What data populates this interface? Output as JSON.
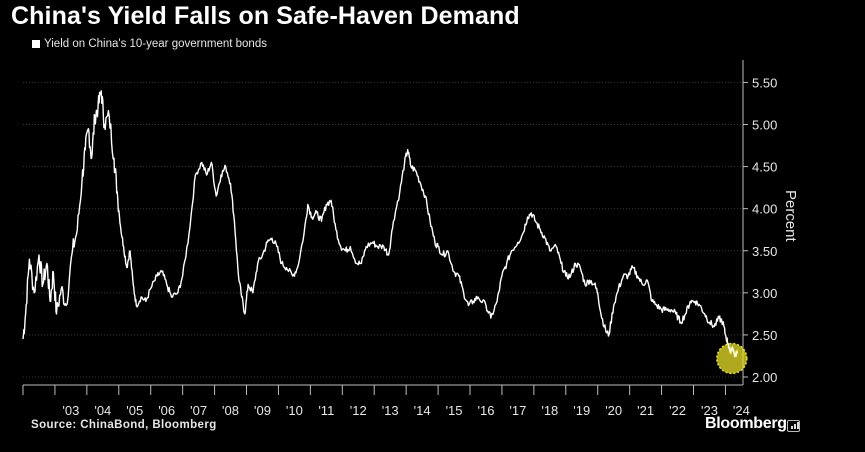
{
  "chart_data": {
    "type": "line",
    "title": "China's Yield Falls on Safe-Haven Demand",
    "legend": "Yield on China's 10-year government bonds",
    "ylabel": "Percent",
    "ylim": [
      2.0,
      5.6
    ],
    "yticks": [
      "2.00",
      "2.50",
      "3.00",
      "3.50",
      "4.00",
      "4.50",
      "5.00",
      "5.50"
    ],
    "ytick_values": [
      2.0,
      2.5,
      3.0,
      3.5,
      4.0,
      4.5,
      5.0,
      5.5
    ],
    "xticks": [
      "'03",
      "'04",
      "'05",
      "'06",
      "'07",
      "'08",
      "'09",
      "'10",
      "'11",
      "'12",
      "'13",
      "'14",
      "'15",
      "'16",
      "'17",
      "'18",
      "'19",
      "'20",
      "'21",
      "'22",
      "'23",
      "'24"
    ],
    "xtick_years": [
      2003,
      2004,
      2005,
      2006,
      2007,
      2008,
      2009,
      2010,
      2011,
      2012,
      2013,
      2014,
      2015,
      2016,
      2017,
      2018,
      2019,
      2020,
      2021,
      2022,
      2023,
      2024
    ],
    "xlim": [
      2002.0,
      2024.55
    ],
    "grid": "horizontal",
    "series": [
      {
        "name": "Yield on China's 10-year government bonds",
        "color": "#ffffff",
        "points": [
          [
            2002.0,
            2.45
          ],
          [
            2002.08,
            2.75
          ],
          [
            2002.2,
            3.4
          ],
          [
            2002.35,
            3.0
          ],
          [
            2002.5,
            3.45
          ],
          [
            2002.62,
            3.1
          ],
          [
            2002.75,
            3.35
          ],
          [
            2002.85,
            2.9
          ],
          [
            2002.95,
            3.25
          ],
          [
            2003.05,
            2.75
          ],
          [
            2003.2,
            3.05
          ],
          [
            2003.35,
            2.85
          ],
          [
            2003.55,
            3.5
          ],
          [
            2003.7,
            3.75
          ],
          [
            2003.85,
            4.35
          ],
          [
            2003.95,
            4.7
          ],
          [
            2004.05,
            4.95
          ],
          [
            2004.15,
            4.6
          ],
          [
            2004.25,
            5.1
          ],
          [
            2004.35,
            5.2
          ],
          [
            2004.45,
            5.4
          ],
          [
            2004.55,
            5.0
          ],
          [
            2004.7,
            5.1
          ],
          [
            2004.85,
            4.6
          ],
          [
            2004.95,
            4.2
          ],
          [
            2005.05,
            3.8
          ],
          [
            2005.15,
            3.55
          ],
          [
            2005.25,
            3.3
          ],
          [
            2005.35,
            3.5
          ],
          [
            2005.45,
            3.1
          ],
          [
            2005.55,
            2.85
          ],
          [
            2005.7,
            2.95
          ],
          [
            2005.85,
            2.9
          ],
          [
            2006.0,
            3.05
          ],
          [
            2006.2,
            3.2
          ],
          [
            2006.35,
            3.25
          ],
          [
            2006.5,
            3.1
          ],
          [
            2006.65,
            2.95
          ],
          [
            2006.85,
            3.0
          ],
          [
            2007.0,
            3.2
          ],
          [
            2007.2,
            3.7
          ],
          [
            2007.4,
            4.4
          ],
          [
            2007.6,
            4.55
          ],
          [
            2007.75,
            4.4
          ],
          [
            2007.9,
            4.55
          ],
          [
            2008.05,
            4.15
          ],
          [
            2008.2,
            4.4
          ],
          [
            2008.35,
            4.5
          ],
          [
            2008.5,
            4.3
          ],
          [
            2008.62,
            3.85
          ],
          [
            2008.75,
            3.2
          ],
          [
            2008.85,
            2.95
          ],
          [
            2008.95,
            2.75
          ],
          [
            2009.05,
            3.1
          ],
          [
            2009.2,
            3.0
          ],
          [
            2009.35,
            3.35
          ],
          [
            2009.5,
            3.45
          ],
          [
            2009.65,
            3.6
          ],
          [
            2009.8,
            3.65
          ],
          [
            2009.95,
            3.55
          ],
          [
            2010.1,
            3.35
          ],
          [
            2010.25,
            3.3
          ],
          [
            2010.45,
            3.2
          ],
          [
            2010.6,
            3.3
          ],
          [
            2010.8,
            3.7
          ],
          [
            2010.92,
            4.05
          ],
          [
            2011.05,
            3.9
          ],
          [
            2011.2,
            3.95
          ],
          [
            2011.35,
            3.85
          ],
          [
            2011.5,
            4.05
          ],
          [
            2011.65,
            4.1
          ],
          [
            2011.8,
            3.75
          ],
          [
            2011.95,
            3.55
          ],
          [
            2012.1,
            3.5
          ],
          [
            2012.25,
            3.55
          ],
          [
            2012.45,
            3.35
          ],
          [
            2012.6,
            3.35
          ],
          [
            2012.75,
            3.55
          ],
          [
            2012.95,
            3.6
          ],
          [
            2013.1,
            3.55
          ],
          [
            2013.3,
            3.55
          ],
          [
            2013.45,
            3.45
          ],
          [
            2013.6,
            3.85
          ],
          [
            2013.8,
            4.2
          ],
          [
            2013.95,
            4.55
          ],
          [
            2014.05,
            4.7
          ],
          [
            2014.15,
            4.5
          ],
          [
            2014.3,
            4.45
          ],
          [
            2014.45,
            4.3
          ],
          [
            2014.6,
            4.15
          ],
          [
            2014.75,
            3.85
          ],
          [
            2014.9,
            3.6
          ],
          [
            2015.0,
            3.55
          ],
          [
            2015.15,
            3.45
          ],
          [
            2015.3,
            3.5
          ],
          [
            2015.5,
            3.25
          ],
          [
            2015.65,
            3.2
          ],
          [
            2015.8,
            3.0
          ],
          [
            2015.95,
            2.85
          ],
          [
            2016.1,
            2.9
          ],
          [
            2016.25,
            2.95
          ],
          [
            2016.5,
            2.85
          ],
          [
            2016.65,
            2.7
          ],
          [
            2016.85,
            2.9
          ],
          [
            2017.0,
            3.2
          ],
          [
            2017.15,
            3.35
          ],
          [
            2017.3,
            3.5
          ],
          [
            2017.5,
            3.6
          ],
          [
            2017.65,
            3.7
          ],
          [
            2017.8,
            3.9
          ],
          [
            2017.92,
            3.95
          ],
          [
            2018.05,
            3.85
          ],
          [
            2018.2,
            3.75
          ],
          [
            2018.35,
            3.65
          ],
          [
            2018.5,
            3.5
          ],
          [
            2018.7,
            3.55
          ],
          [
            2018.85,
            3.35
          ],
          [
            2019.0,
            3.2
          ],
          [
            2019.15,
            3.2
          ],
          [
            2019.3,
            3.35
          ],
          [
            2019.45,
            3.3
          ],
          [
            2019.6,
            3.1
          ],
          [
            2019.75,
            3.15
          ],
          [
            2019.9,
            3.1
          ],
          [
            2020.0,
            3.0
          ],
          [
            2020.1,
            2.75
          ],
          [
            2020.25,
            2.55
          ],
          [
            2020.35,
            2.5
          ],
          [
            2020.5,
            2.85
          ],
          [
            2020.65,
            3.05
          ],
          [
            2020.8,
            3.2
          ],
          [
            2020.95,
            3.2
          ],
          [
            2021.1,
            3.3
          ],
          [
            2021.25,
            3.2
          ],
          [
            2021.4,
            3.1
          ],
          [
            2021.55,
            3.15
          ],
          [
            2021.7,
            2.9
          ],
          [
            2021.85,
            2.85
          ],
          [
            2022.0,
            2.8
          ],
          [
            2022.15,
            2.8
          ],
          [
            2022.3,
            2.8
          ],
          [
            2022.45,
            2.75
          ],
          [
            2022.6,
            2.65
          ],
          [
            2022.75,
            2.75
          ],
          [
            2022.9,
            2.9
          ],
          [
            2023.05,
            2.9
          ],
          [
            2023.2,
            2.85
          ],
          [
            2023.35,
            2.75
          ],
          [
            2023.5,
            2.65
          ],
          [
            2023.65,
            2.6
          ],
          [
            2023.8,
            2.7
          ],
          [
            2023.92,
            2.65
          ],
          [
            2024.0,
            2.5
          ],
          [
            2024.08,
            2.4
          ],
          [
            2024.15,
            2.3
          ],
          [
            2024.22,
            2.35
          ],
          [
            2024.3,
            2.25
          ],
          [
            2024.38,
            2.3
          ]
        ]
      }
    ],
    "annotations": [
      {
        "type": "highlight-circle",
        "x": 2024.2,
        "y": 2.22,
        "color": "#e8e228"
      }
    ],
    "source": "Source: ChinaBond, Bloomberg",
    "brand": "Bloomberg"
  }
}
